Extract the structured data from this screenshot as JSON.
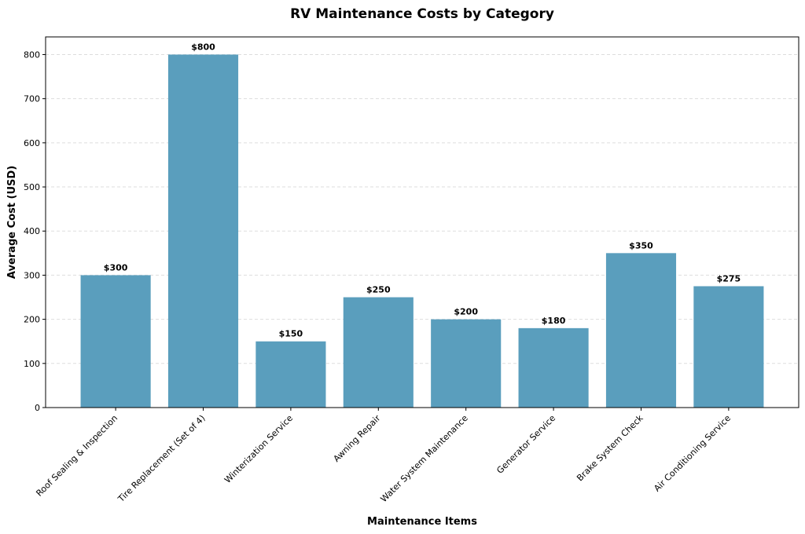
{
  "chart_data": {
    "type": "bar",
    "title": "RV Maintenance Costs by Category",
    "xlabel": "Maintenance Items",
    "ylabel": "Average Cost (USD)",
    "categories": [
      "Roof Sealing & Inspection",
      "Tire Replacement (Set of 4)",
      "Winterization Service",
      "Awning Repair",
      "Water System Maintenance",
      "Generator Service",
      "Brake System Check",
      "Air Conditioning Service"
    ],
    "values": [
      300,
      800,
      150,
      250,
      200,
      180,
      350,
      275
    ],
    "data_labels": [
      "$300",
      "$800",
      "$150",
      "$250",
      "$200",
      "$180",
      "$350",
      "$275"
    ],
    "ylim": [
      0,
      840
    ],
    "yticks": [
      0,
      100,
      200,
      300,
      400,
      500,
      600,
      700,
      800
    ],
    "grid": "y, dashed",
    "bar_color": "#5a9ebd"
  }
}
